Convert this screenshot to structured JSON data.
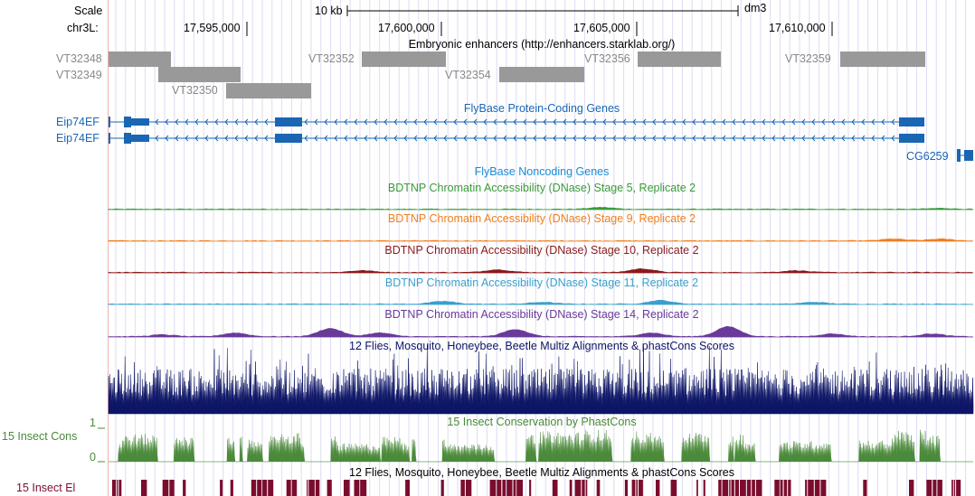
{
  "ruler": {
    "scale_label": "Scale",
    "scale_bar_label": "10 kb",
    "assembly": "dm3",
    "chrom_label": "chr3L:",
    "positions": [
      "17,595,000",
      "17,600,000",
      "17,605,000",
      "17,610,000"
    ]
  },
  "enhancers": {
    "title": "Embryonic enhancers (http://enhancers.starklab.org/)",
    "items": [
      "VT32348",
      "VT32349",
      "VT32350",
      "VT32352",
      "VT32354",
      "VT32356",
      "VT32359"
    ]
  },
  "genes": {
    "title": "FlyBase Protein-Coding Genes",
    "left_labels": [
      "Eip74EF",
      "Eip74EF"
    ],
    "right_label": "CG6259"
  },
  "noncoding": {
    "title": "FlyBase Noncoding Genes"
  },
  "dnase": [
    {
      "title": "BDTNP Chromatin Accessibility (DNase) Stage 5, Replicate 2",
      "color": "#3a9a3a"
    },
    {
      "title": "BDTNP Chromatin Accessibility (DNase) Stage 9, Replicate 2",
      "color": "#f07f1e"
    },
    {
      "title": "BDTNP Chromatin Accessibility (DNase) Stage 10, Replicate 2",
      "color": "#8b1a1a"
    },
    {
      "title": "BDTNP Chromatin Accessibility (DNase) Stage 11, Replicate 2",
      "color": "#3aa0d0"
    },
    {
      "title": "BDTNP Chromatin Accessibility (DNase) Stage 14, Replicate 2",
      "color": "#6a3a9a"
    }
  ],
  "multiz": {
    "title": "12 Flies, Mosquito, Honeybee, Beetle Multiz Alignments & phastCons Scores",
    "color": "#0d1566"
  },
  "cons": {
    "title": "15 Insect Conservation by PhastCons",
    "side_label": "15 Insect Cons",
    "ymax": "1",
    "ymin": "0",
    "color": "#4a8a3a"
  },
  "elements": {
    "title": "12 Flies, Mosquito, Honeybee, Beetle Multiz Alignments & phastCons Scores",
    "side_label": "15 Insect El",
    "color": "#7a0d2e"
  }
}
